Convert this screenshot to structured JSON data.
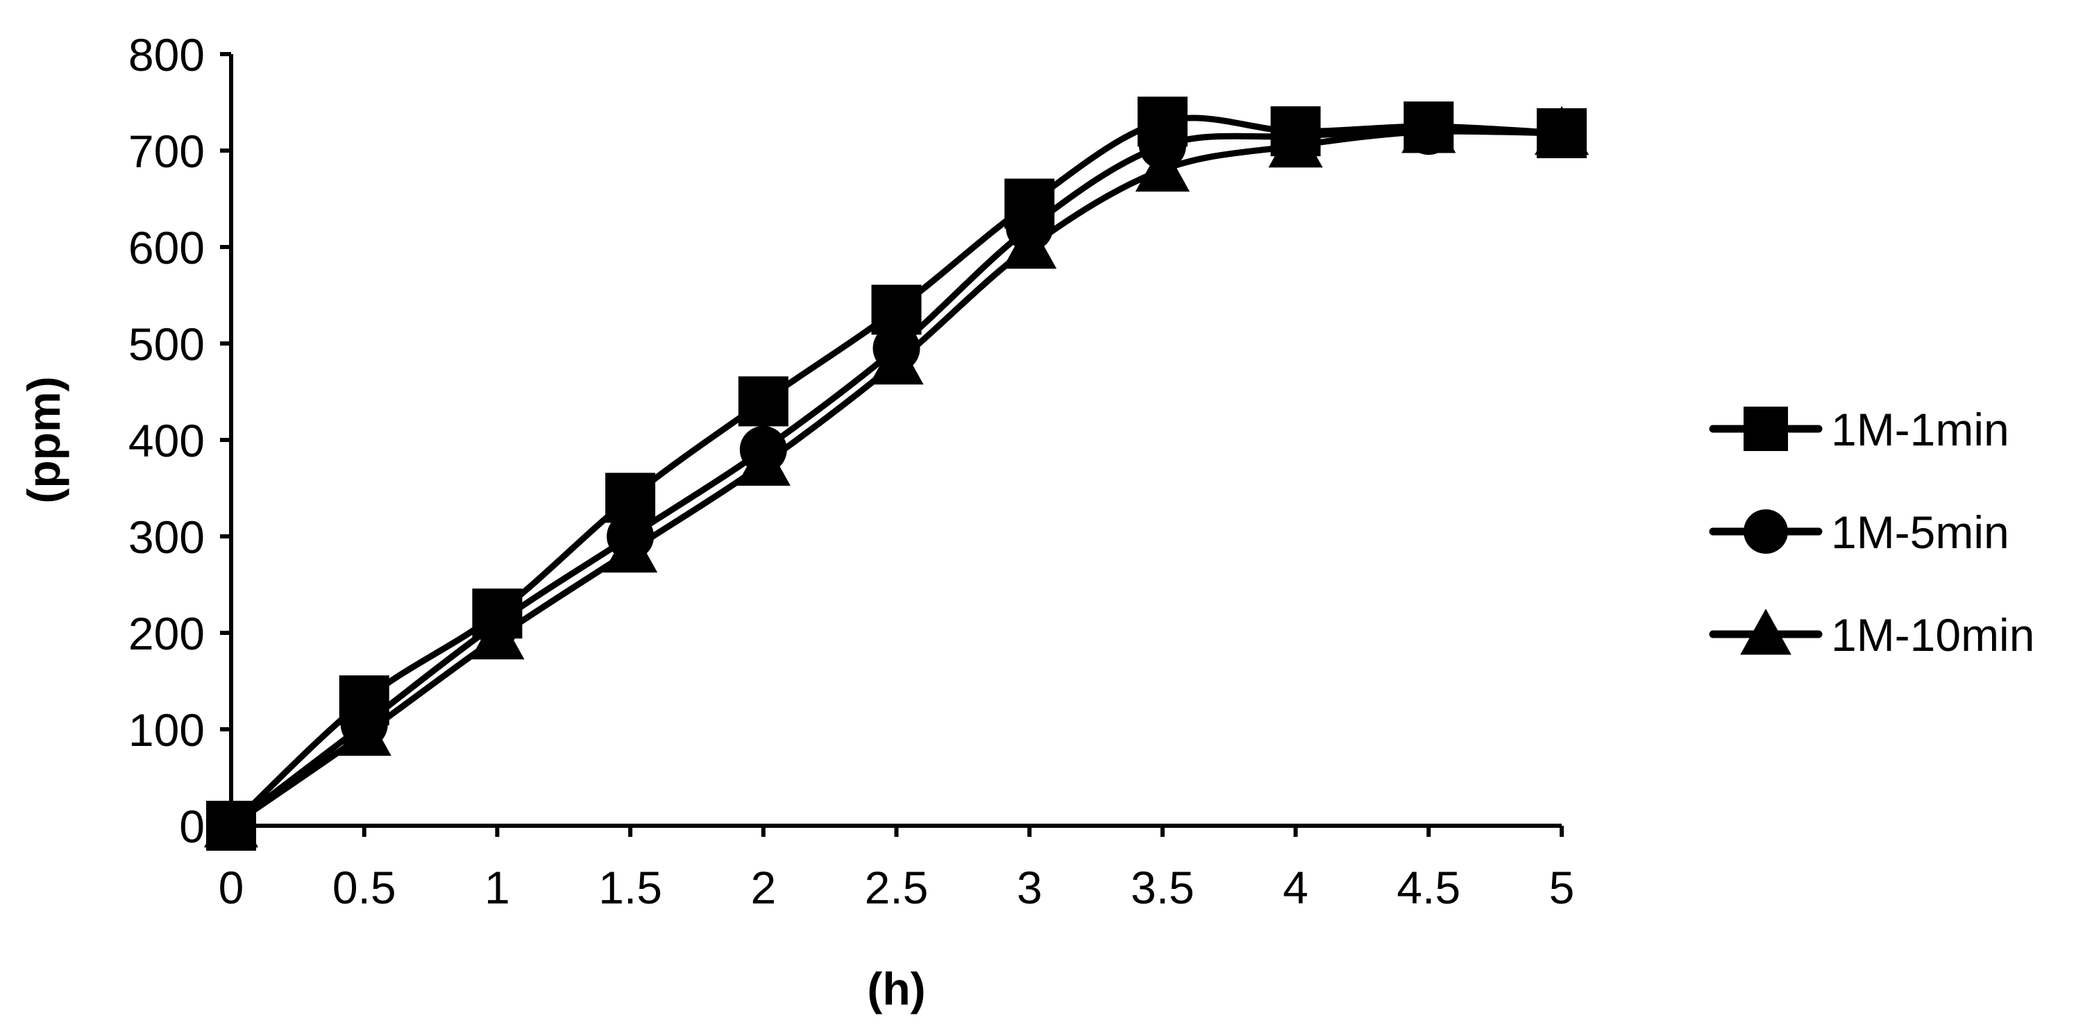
{
  "chart_data": {
    "type": "line",
    "title": "",
    "xlabel": "(h)",
    "ylabel": "(ppm)",
    "xlim": [
      0,
      5
    ],
    "ylim": [
      0,
      800
    ],
    "x_ticks": [
      "0",
      "0.5",
      "1",
      "1.5",
      "2",
      "2.5",
      "3",
      "3.5",
      "4",
      "4.5",
      "5"
    ],
    "y_ticks": [
      "0",
      "100",
      "200",
      "300",
      "400",
      "500",
      "600",
      "700",
      "800"
    ],
    "grid": false,
    "legend_position": "right",
    "line_color": "#000000",
    "x": [
      0,
      0.5,
      1,
      1.5,
      2,
      2.5,
      3,
      3.5,
      4,
      4.5,
      5
    ],
    "series": [
      {
        "name": "1M-1min",
        "marker": "square",
        "values": [
          0,
          130,
          220,
          340,
          440,
          535,
          645,
          730,
          720,
          725,
          718
        ]
      },
      {
        "name": "1M-5min",
        "marker": "circle",
        "values": [
          0,
          105,
          210,
          300,
          390,
          495,
          620,
          705,
          715,
          720,
          718
        ]
      },
      {
        "name": "1M-10min",
        "marker": "triangle",
        "values": [
          0,
          95,
          195,
          285,
          375,
          480,
          600,
          680,
          705,
          720,
          718
        ]
      }
    ]
  }
}
